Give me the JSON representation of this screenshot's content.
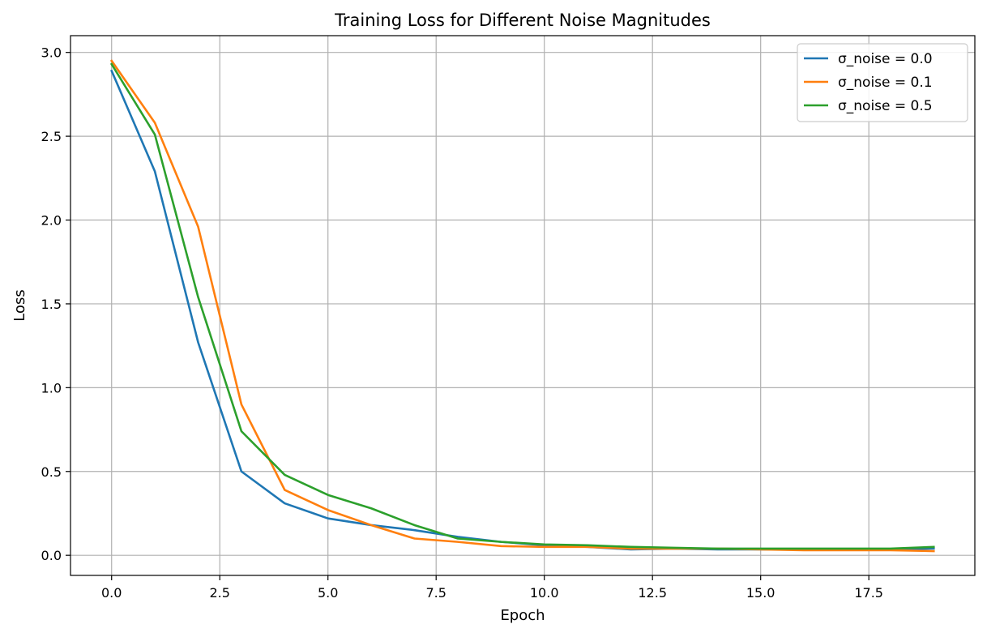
{
  "chart_data": {
    "type": "line",
    "title": "Training Loss for Different Noise Magnitudes",
    "xlabel": "Epoch",
    "ylabel": "Loss",
    "xlim": [
      -0.95,
      19.95
    ],
    "ylim": [
      -0.12,
      3.1
    ],
    "x_ticks": [
      0.0,
      2.5,
      5.0,
      7.5,
      10.0,
      12.5,
      15.0,
      17.5
    ],
    "x_tick_labels": [
      "0.0",
      "2.5",
      "5.0",
      "7.5",
      "10.0",
      "12.5",
      "15.0",
      "17.5"
    ],
    "y_ticks": [
      0.0,
      0.5,
      1.0,
      1.5,
      2.0,
      2.5,
      3.0
    ],
    "y_tick_labels": [
      "0.0",
      "0.5",
      "1.0",
      "1.5",
      "2.0",
      "2.5",
      "3.0"
    ],
    "grid": true,
    "legend_position": "top-right",
    "x": [
      0,
      1,
      2,
      3,
      4,
      5,
      6,
      7,
      8,
      9,
      10,
      11,
      12,
      13,
      14,
      15,
      16,
      17,
      18,
      19
    ],
    "series": [
      {
        "name": "σ_noise = 0.0",
        "color": "#1f77b4",
        "values": [
          2.89,
          2.29,
          1.27,
          0.5,
          0.31,
          0.22,
          0.18,
          0.15,
          0.11,
          0.08,
          0.06,
          0.05,
          0.035,
          0.04,
          0.035,
          0.035,
          0.035,
          0.035,
          0.035,
          0.04
        ]
      },
      {
        "name": "σ_noise = 0.1",
        "color": "#ff7f0e",
        "values": [
          2.95,
          2.58,
          1.96,
          0.9,
          0.39,
          0.27,
          0.18,
          0.1,
          0.08,
          0.055,
          0.05,
          0.05,
          0.04,
          0.04,
          0.04,
          0.035,
          0.03,
          0.03,
          0.03,
          0.025
        ]
      },
      {
        "name": "σ_noise = 0.5",
        "color": "#2ca02c",
        "values": [
          2.93,
          2.51,
          1.54,
          0.74,
          0.48,
          0.36,
          0.28,
          0.18,
          0.1,
          0.08,
          0.065,
          0.06,
          0.05,
          0.045,
          0.04,
          0.04,
          0.04,
          0.04,
          0.04,
          0.05
        ]
      }
    ]
  }
}
